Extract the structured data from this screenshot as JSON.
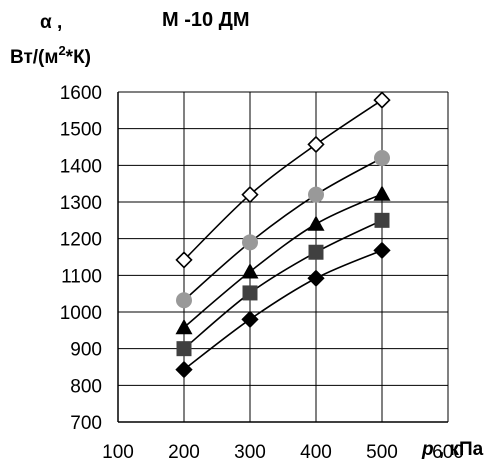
{
  "chart_data": {
    "type": "line",
    "title": "М -10 ДМ",
    "ylabel_symbol": "α ,",
    "ylabel_unit_pre": "Вт/(м",
    "ylabel_unit_sup": "2",
    "ylabel_unit_post": "*К)",
    "xlabel_symbol": "p",
    "xlabel_unit": " , кПа",
    "xlim": [
      100,
      600
    ],
    "ylim": [
      700,
      1600
    ],
    "xticks": [
      100,
      200,
      300,
      400,
      500,
      600
    ],
    "yticks": [
      700,
      800,
      900,
      1000,
      1100,
      1200,
      1300,
      1400,
      1500,
      1600
    ],
    "grid": true,
    "x": [
      200,
      300,
      400,
      500
    ],
    "series": [
      {
        "marker": "diamond-open",
        "color": "#000000",
        "values": [
          1142,
          1320,
          1457,
          1578
        ]
      },
      {
        "marker": "circle",
        "color": "#999999",
        "values": [
          1032,
          1190,
          1320,
          1420
        ]
      },
      {
        "marker": "triangle",
        "color": "#000000",
        "values": [
          958,
          1110,
          1240,
          1322
        ]
      },
      {
        "marker": "square",
        "color": "#404040",
        "values": [
          900,
          1052,
          1163,
          1250
        ]
      },
      {
        "marker": "diamond",
        "color": "#000000",
        "values": [
          843,
          980,
          1092,
          1168
        ]
      }
    ]
  }
}
